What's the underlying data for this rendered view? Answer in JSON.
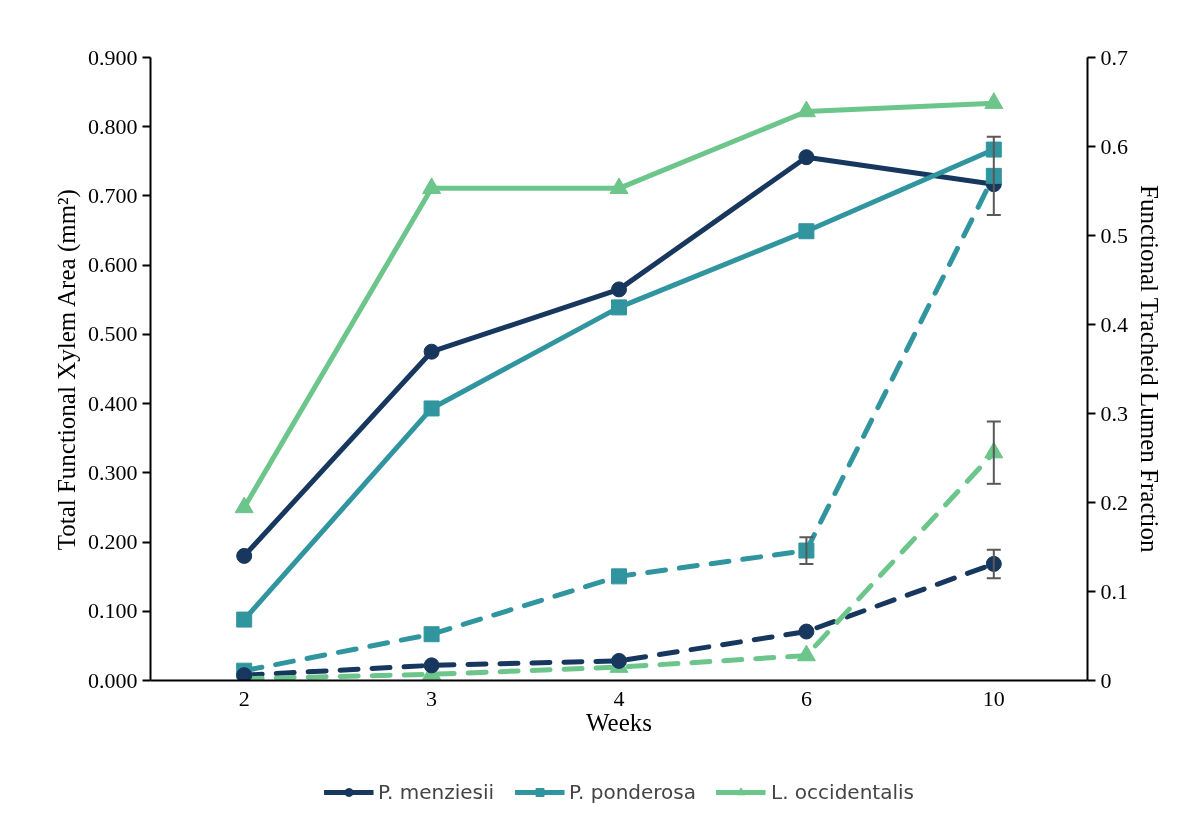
{
  "chart_data": {
    "type": "line",
    "xlabel": "Weeks",
    "ylabel": "Total Functional Xylem Area (mm²)",
    "y2label": "Functional Tracheid Lumen Fraction",
    "categories": [
      "2",
      "3",
      "4",
      "6",
      "10"
    ],
    "ylim": [
      0,
      0.9
    ],
    "yticks": [
      {
        "value": 0,
        "label": "0.000"
      },
      {
        "value": 0.1,
        "label": "0.100"
      },
      {
        "value": 0.2,
        "label": "0.200"
      },
      {
        "value": 0.3,
        "label": "0.300"
      },
      {
        "value": 0.4,
        "label": "0.400"
      },
      {
        "value": 0.5,
        "label": "0.500"
      },
      {
        "value": 0.6,
        "label": "0.600"
      },
      {
        "value": 0.7,
        "label": "0.700"
      },
      {
        "value": 0.8,
        "label": "0.800"
      },
      {
        "value": 0.9,
        "label": "0.900"
      }
    ],
    "y2lim": [
      0,
      0.7
    ],
    "y2ticks": [
      0,
      0.1,
      0.2,
      0.3,
      0.4,
      0.5,
      0.6,
      0.7
    ],
    "grid": false,
    "legend": "bottom",
    "series": [
      {
        "name": "P. menziesii",
        "color": "#17375e",
        "marker": "circle",
        "line_style": "solid",
        "values": [
          0.18,
          0.475,
          0.565,
          0.756,
          0.717
        ]
      },
      {
        "name": "P. ponderosa",
        "color": "#31959f",
        "marker": "square",
        "line_style": "solid",
        "values": [
          0.088,
          0.393,
          0.539,
          0.649,
          0.767
        ]
      },
      {
        "name": "L. occidentalis",
        "color": "#6cc58a",
        "marker": "triangle",
        "line_style": "solid",
        "values": [
          0.25,
          0.711,
          0.711,
          0.822,
          0.834
        ]
      },
      {
        "color": "#17375e",
        "marker": "circle",
        "line_style": "dashed",
        "axis": "y2",
        "values": [
          0.006,
          0.017,
          0.022,
          0.055,
          0.131
        ],
        "errors": [
          null,
          null,
          null,
          null,
          0.016
        ]
      },
      {
        "color": "#31959f",
        "marker": "square",
        "line_style": "dashed",
        "axis": "y2",
        "values": [
          0.011,
          0.052,
          0.117,
          0.146,
          0.567
        ],
        "errors": [
          null,
          null,
          null,
          0.015,
          0.044
        ]
      },
      {
        "color": "#6cc58a",
        "marker": "triangle",
        "line_style": "dashed",
        "axis": "y2",
        "values": [
          0.002,
          0.007,
          0.015,
          0.028,
          0.256
        ],
        "errors": [
          null,
          null,
          null,
          null,
          0.035
        ]
      }
    ]
  }
}
